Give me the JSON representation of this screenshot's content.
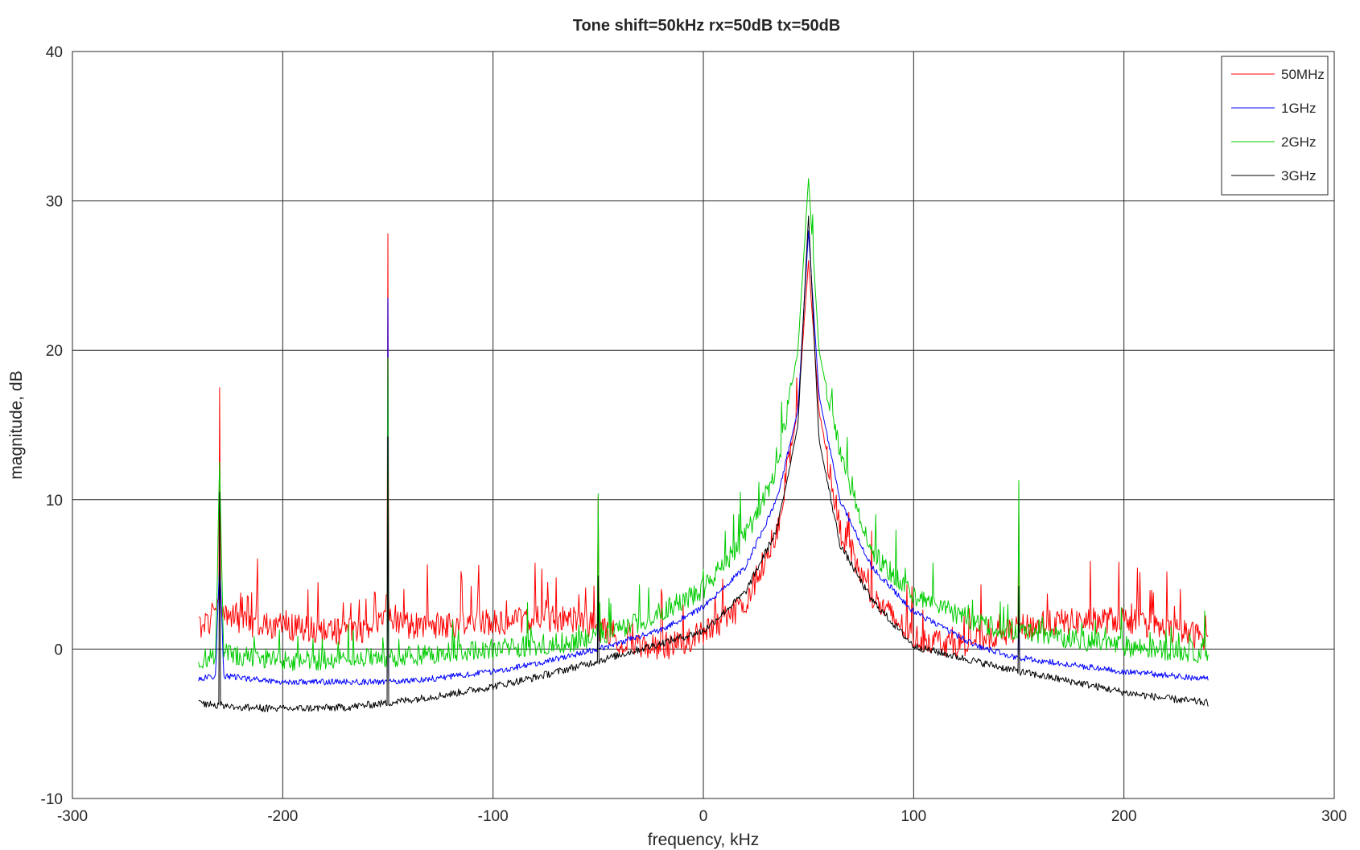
{
  "chart_data": {
    "type": "line",
    "title": "Tone shift=50kHz rx=50dB tx=50dB",
    "xlabel": "frequency, kHz",
    "ylabel": "magnitude, dB",
    "xlim": [
      -300,
      300
    ],
    "ylim": [
      -10,
      40
    ],
    "xticks": [
      -300,
      -200,
      -100,
      0,
      100,
      200,
      300
    ],
    "yticks": [
      -10,
      0,
      10,
      20,
      30,
      40
    ],
    "xtick_labels": [
      "-300",
      "-200",
      "-100",
      "0",
      "100",
      "200",
      "300"
    ],
    "ytick_labels": [
      "-10",
      "0",
      "10",
      "20",
      "30",
      "40"
    ],
    "grid": true,
    "legend_position": "top-right",
    "x_range": [
      -240,
      240
    ],
    "series": [
      {
        "name": "50MHz",
        "color": "#ff0000",
        "floor_points": [
          [
            -240,
            1.5
          ],
          [
            -235,
            1.8
          ],
          [
            -232,
            3
          ],
          [
            -228,
            2.5
          ],
          [
            -220,
            1.8
          ],
          [
            -200,
            1.5
          ],
          [
            -175,
            1.2
          ],
          [
            -158,
            1.3
          ],
          [
            -150,
            3.0
          ],
          [
            -148,
            2.2
          ],
          [
            -140,
            1.6
          ],
          [
            -120,
            1.6
          ],
          [
            -100,
            1.8
          ],
          [
            -80,
            2.0
          ],
          [
            -60,
            2.0
          ],
          [
            -50,
            1.5
          ],
          [
            -40,
            0.5
          ],
          [
            -20,
            0.0
          ],
          [
            0,
            1.0
          ],
          [
            20,
            3.0
          ],
          [
            35,
            8.0
          ],
          [
            45,
            16
          ],
          [
            50,
            26
          ],
          [
            55,
            16
          ],
          [
            65,
            8
          ],
          [
            80,
            3.5
          ],
          [
            100,
            0.8
          ],
          [
            120,
            0.3
          ],
          [
            140,
            1.0
          ],
          [
            150,
            1.4
          ],
          [
            170,
            1.8
          ],
          [
            200,
            2.0
          ],
          [
            220,
            1.3
          ],
          [
            240,
            0.8
          ]
        ],
        "noise": 0.9,
        "spikes": [
          [
            -230,
            17.5
          ],
          [
            -150,
            27.8
          ],
          [
            -50,
            10.2
          ],
          [
            50,
            26
          ],
          [
            150,
            9.2
          ]
        ]
      },
      {
        "name": "1GHz",
        "color": "#0000ff",
        "floor_points": [
          [
            -240,
            -2.0
          ],
          [
            -232,
            -1.8
          ],
          [
            -230,
            5.8
          ],
          [
            -228,
            -1.8
          ],
          [
            -200,
            -2.2
          ],
          [
            -150,
            -2.2
          ],
          [
            -130,
            -2.0
          ],
          [
            -100,
            -1.5
          ],
          [
            -80,
            -1.0
          ],
          [
            -50,
            0.0
          ],
          [
            -20,
            1.3
          ],
          [
            0,
            2.8
          ],
          [
            20,
            5.5
          ],
          [
            35,
            10
          ],
          [
            45,
            16
          ],
          [
            50,
            28
          ],
          [
            55,
            17
          ],
          [
            65,
            10
          ],
          [
            80,
            5.5
          ],
          [
            100,
            2.5
          ],
          [
            130,
            0.2
          ],
          [
            150,
            -0.6
          ],
          [
            200,
            -1.5
          ],
          [
            240,
            -2.0
          ]
        ],
        "noise": 0.2,
        "spikes": [
          [
            -230,
            5.8
          ],
          [
            -150,
            23.5
          ],
          [
            -50,
            3.8
          ],
          [
            50,
            28
          ],
          [
            150,
            3.0
          ]
        ]
      },
      {
        "name": "2GHz",
        "color": "#00cc00",
        "floor_points": [
          [
            -240,
            -0.8
          ],
          [
            -232,
            -0.5
          ],
          [
            -230,
            12
          ],
          [
            -228,
            -0.3
          ],
          [
            -200,
            -0.8
          ],
          [
            -150,
            -0.6
          ],
          [
            -120,
            -0.2
          ],
          [
            -100,
            0.0
          ],
          [
            -60,
            0.5
          ],
          [
            -30,
            1.8
          ],
          [
            0,
            4.0
          ],
          [
            20,
            7.5
          ],
          [
            35,
            12
          ],
          [
            45,
            20
          ],
          [
            50,
            31.5
          ],
          [
            55,
            20
          ],
          [
            65,
            13
          ],
          [
            80,
            6.5
          ],
          [
            100,
            3.5
          ],
          [
            130,
            1.8
          ],
          [
            150,
            1.2
          ],
          [
            200,
            0.2
          ],
          [
            240,
            -0.3
          ]
        ],
        "noise": 0.7,
        "spikes": [
          [
            -230,
            12.5
          ],
          [
            -150,
            19.5
          ],
          [
            -50,
            10.4
          ],
          [
            50,
            31.5
          ],
          [
            150,
            11.3
          ]
        ]
      },
      {
        "name": "3GHz",
        "color": "#000000",
        "floor_points": [
          [
            -240,
            -3.6
          ],
          [
            -220,
            -3.9
          ],
          [
            -200,
            -4.0
          ],
          [
            -170,
            -3.9
          ],
          [
            -150,
            -3.6
          ],
          [
            -120,
            -3.0
          ],
          [
            -100,
            -2.5
          ],
          [
            -80,
            -1.9
          ],
          [
            -50,
            -0.8
          ],
          [
            -30,
            0.0
          ],
          [
            -10,
            0.8
          ],
          [
            0,
            1.2
          ],
          [
            20,
            3.8
          ],
          [
            35,
            8.0
          ],
          [
            45,
            15
          ],
          [
            50,
            29
          ],
          [
            55,
            14
          ],
          [
            65,
            7
          ],
          [
            80,
            3.3
          ],
          [
            100,
            0.2
          ],
          [
            120,
            -0.5
          ],
          [
            150,
            -1.5
          ],
          [
            180,
            -2.3
          ],
          [
            200,
            -2.9
          ],
          [
            220,
            -3.3
          ],
          [
            240,
            -3.6
          ]
        ],
        "noise": 0.25,
        "spikes": [
          [
            -230,
            10.5
          ],
          [
            -150,
            14.2
          ],
          [
            -50,
            4.9
          ],
          [
            50,
            29
          ],
          [
            150,
            4.2
          ]
        ]
      }
    ]
  }
}
